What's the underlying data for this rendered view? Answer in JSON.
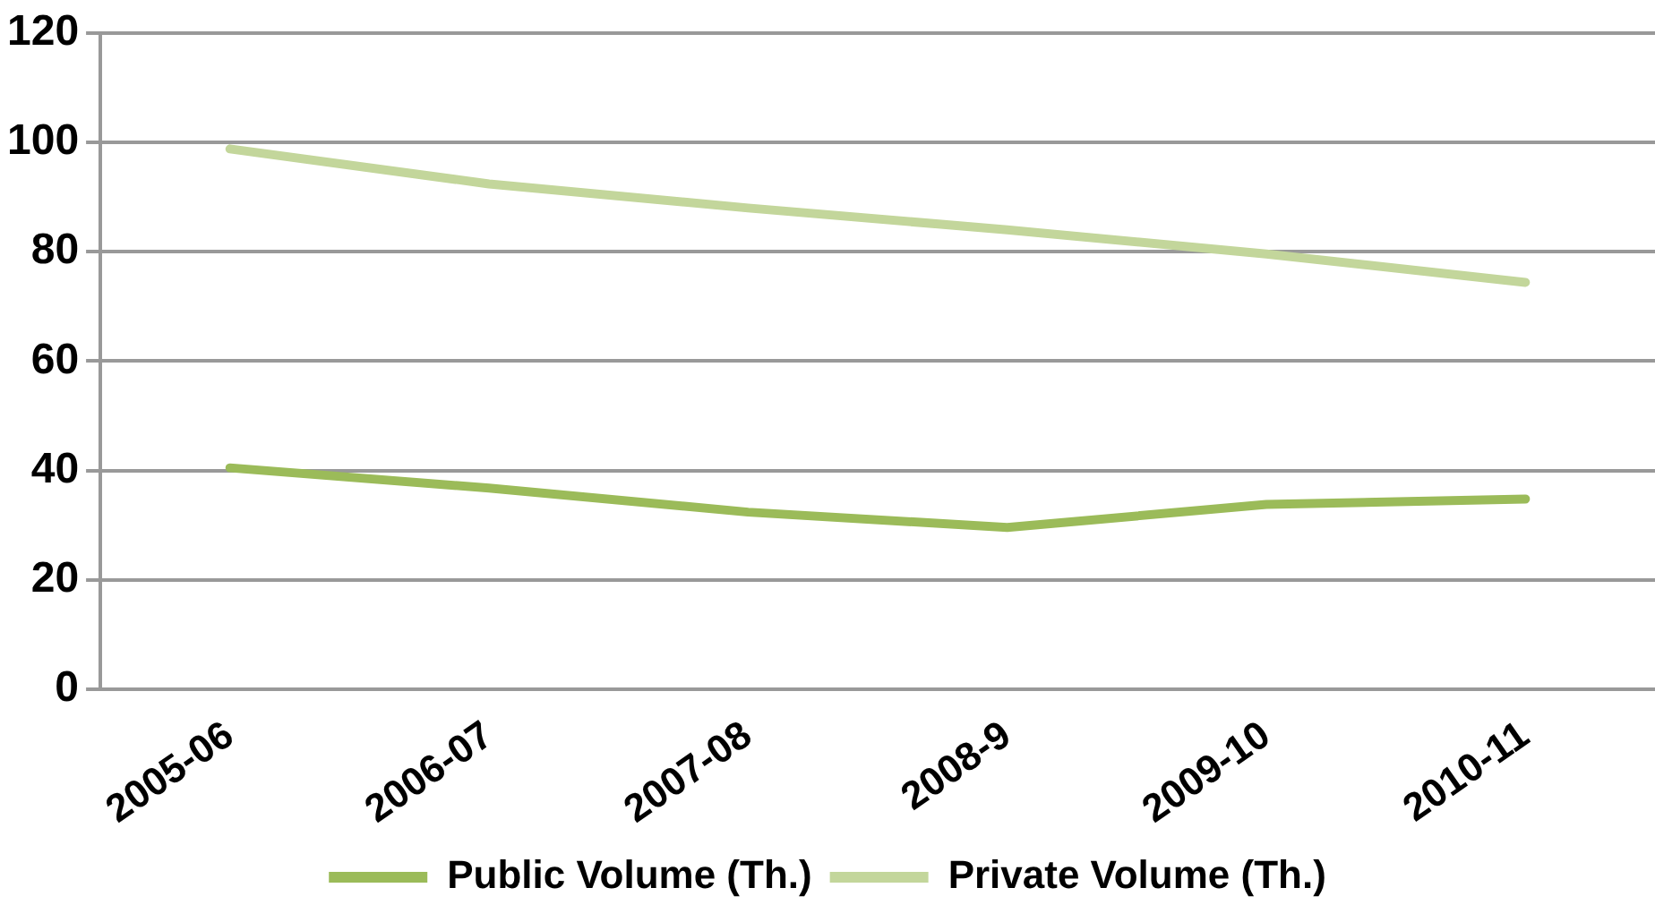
{
  "chart_data": {
    "type": "line",
    "categories": [
      "2005-06",
      "2006-07",
      "2007-08",
      "2008-9",
      "2009-10",
      "2010-11"
    ],
    "series": [
      {
        "name": "Public Volume (Th.)",
        "color": "#9bbb59",
        "values": [
          40.5,
          36.8,
          32.4,
          29.6,
          33.8,
          34.8
        ]
      },
      {
        "name": "Private Volume (Th.)",
        "color": "#c3d69b",
        "values": [
          98.8,
          92.4,
          88,
          84,
          79.6,
          74.4
        ]
      }
    ],
    "ylim": [
      0,
      120
    ],
    "yticks": [
      0,
      20,
      40,
      60,
      80,
      100,
      120
    ],
    "grid": "y",
    "legend": "bottom",
    "marker": "none",
    "line_style": "solid"
  }
}
